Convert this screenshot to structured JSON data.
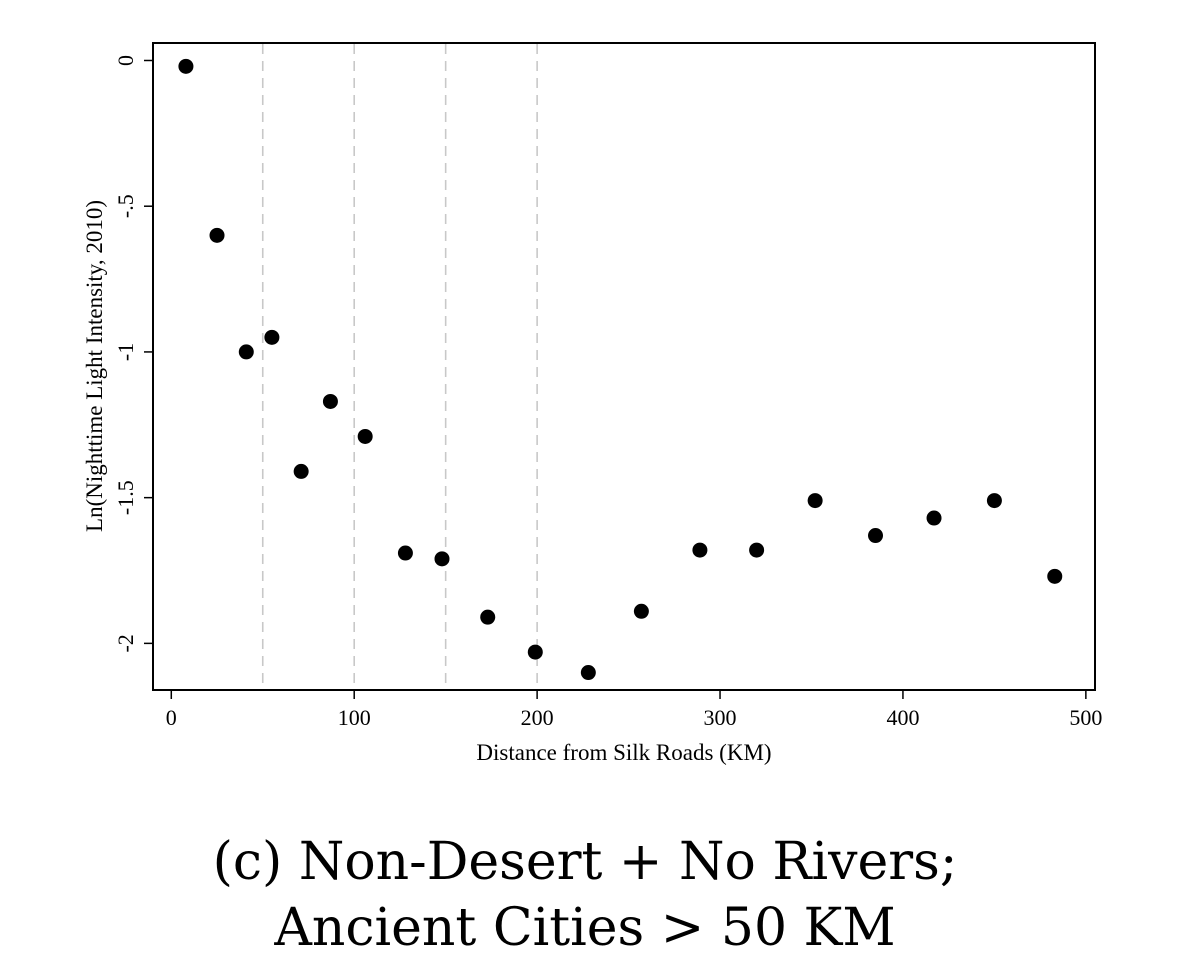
{
  "caption": {
    "line1": "(c) Non-Desert + No Rivers;",
    "line2": "Ancient Cities > 50 KM"
  },
  "chart_data": {
    "type": "scatter",
    "title": "",
    "xlabel": "Distance from Silk Roads (KM)",
    "ylabel": "Ln(Nighttime Light Intensity, 2010)",
    "xlim": [
      -10,
      505
    ],
    "ylim": [
      -2.16,
      0.06
    ],
    "x_ticks": [
      0,
      100,
      200,
      300,
      400,
      500
    ],
    "x_tick_labels": [
      "0",
      "100",
      "200",
      "300",
      "400",
      "500"
    ],
    "y_ticks": [
      0,
      -0.5,
      -1,
      -1.5,
      -2
    ],
    "y_tick_labels": [
      "0",
      "-.5",
      "-1",
      "-1.5",
      "-2"
    ],
    "reference_lines_x": [
      50,
      100,
      150,
      200
    ],
    "grid": false,
    "legend": "none",
    "marker_color": "#000000",
    "reference_line_color": "#c8c8c8",
    "series": [
      {
        "x": [
          8,
          25,
          41,
          55,
          71,
          87,
          106,
          128,
          148,
          173,
          199,
          228,
          257,
          289,
          320,
          352,
          385,
          417,
          450,
          483
        ],
        "y": [
          -0.02,
          -0.6,
          -1.0,
          -0.95,
          -1.41,
          -1.17,
          -1.29,
          -1.69,
          -1.71,
          -1.91,
          -2.03,
          -2.1,
          -1.89,
          -1.68,
          -1.68,
          -1.51,
          -1.63,
          -1.57,
          -1.51,
          -1.77
        ]
      }
    ]
  }
}
